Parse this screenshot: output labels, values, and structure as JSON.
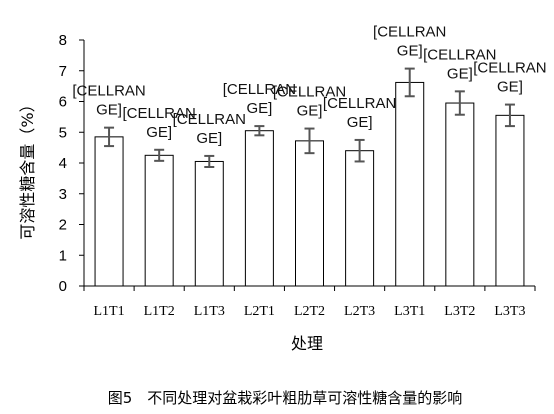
{
  "chart_data": {
    "type": "bar",
    "categories": [
      "L1T1",
      "L1T2",
      "L1T3",
      "L2T1",
      "L2T2",
      "L2T3",
      "L3T1",
      "L3T2",
      "L3T3"
    ],
    "values": [
      4.85,
      4.25,
      4.05,
      5.05,
      4.72,
      4.4,
      6.62,
      5.95,
      5.55
    ],
    "errors": [
      0.3,
      0.18,
      0.18,
      0.15,
      0.4,
      0.35,
      0.45,
      0.38,
      0.35
    ],
    "data_labels": [
      "[CELLRANGE]",
      "[CELLRANGE]",
      "[CELLRANGE]",
      "[CELLRANGE]",
      "[CELLRANGE]",
      "[CELLRANGE]",
      "[CELLRANGE]",
      "[CELLRANGE]",
      "[CELLRANGE]"
    ],
    "xlabel": "处理",
    "ylabel": "可溶性糖含量（%）",
    "ylim": [
      0,
      8
    ],
    "yticks": [
      0,
      1,
      2,
      3,
      4,
      5,
      6,
      7,
      8
    ],
    "grid": false,
    "colors": {
      "bar_fill": "#ffffff",
      "bar_stroke": "#000000",
      "error_bar": "#555555",
      "axis": "#000000"
    }
  },
  "caption": "图5　不同处理对盆栽彩叶粗肋草可溶性糖含量的影响"
}
